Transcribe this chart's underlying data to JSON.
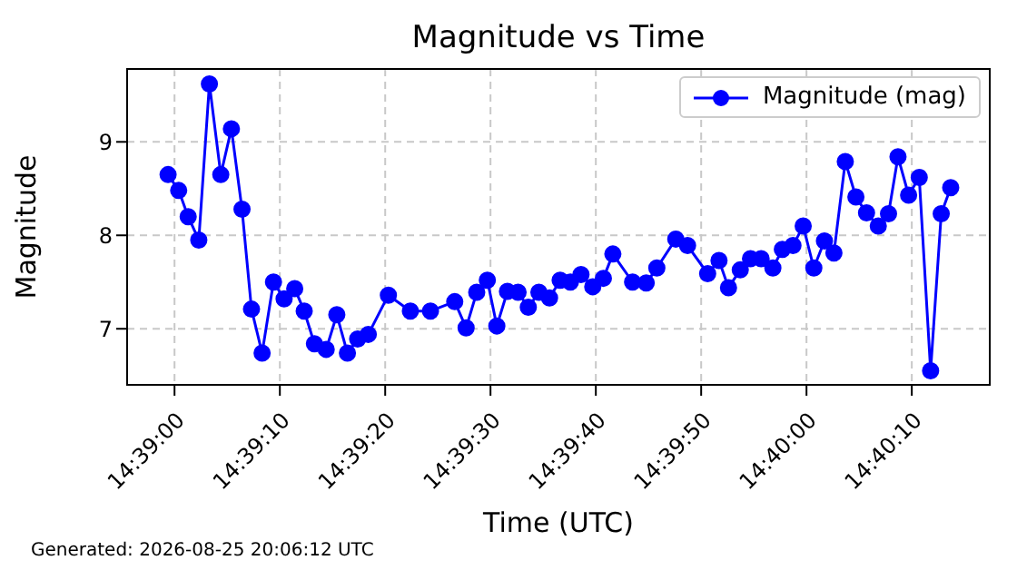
{
  "chart_data": {
    "type": "line",
    "title": "Magnitude vs Time",
    "xlabel": "Time (UTC)",
    "ylabel": "Magnitude",
    "annotations": [
      "Generated: 2026-08-25 20:06:12 UTC"
    ],
    "x": [
      14.64983,
      14.65011,
      14.65036,
      14.65064,
      14.65092,
      14.65122,
      14.6515,
      14.65178,
      14.65203,
      14.65231,
      14.65261,
      14.65289,
      14.65317,
      14.65342,
      14.65369,
      14.654,
      14.65428,
      14.65456,
      14.65483,
      14.65511,
      14.65564,
      14.65622,
      14.65675,
      14.65739,
      14.65769,
      14.65797,
      14.65825,
      14.6585,
      14.65878,
      14.65906,
      14.65933,
      14.65961,
      14.65989,
      14.66017,
      14.66044,
      14.66072,
      14.66103,
      14.66131,
      14.66156,
      14.66208,
      14.66244,
      14.66272,
      14.66322,
      14.66353,
      14.66406,
      14.66436,
      14.66461,
      14.66492,
      14.66519,
      14.66547,
      14.66578,
      14.66603,
      14.66631,
      14.66658,
      14.66686,
      14.66714,
      14.66739,
      14.66769,
      14.66797,
      14.66825,
      14.66856,
      14.66883,
      14.66908,
      14.66936,
      14.66964,
      14.66994,
      14.67022,
      14.67047
    ],
    "series": [
      {
        "name": "Magnitude (mag)",
        "color": "#0000ff",
        "values": [
          8.65,
          8.48,
          8.2,
          7.95,
          9.62,
          8.65,
          9.14,
          8.28,
          7.21,
          6.74,
          7.5,
          7.32,
          7.43,
          7.19,
          6.84,
          6.78,
          7.15,
          6.74,
          6.89,
          6.94,
          7.36,
          7.19,
          7.19,
          7.29,
          7.01,
          7.39,
          7.52,
          7.03,
          7.4,
          7.39,
          7.23,
          7.39,
          7.33,
          7.52,
          7.5,
          7.58,
          7.45,
          7.54,
          7.8,
          7.5,
          7.49,
          7.65,
          7.96,
          7.89,
          7.59,
          7.73,
          7.44,
          7.63,
          7.75,
          7.75,
          7.65,
          7.85,
          7.89,
          8.1,
          7.65,
          7.94,
          7.81,
          8.79,
          8.41,
          8.24,
          8.1,
          8.23,
          8.84,
          8.43,
          8.62,
          6.55,
          8.23,
          8.51
        ]
      }
    ],
    "xlim": [
      14.64875,
      14.6715
    ],
    "xticks": [
      {
        "value": 14.65,
        "label": "14:39:00"
      },
      {
        "value": 14.652778,
        "label": "14:39:10"
      },
      {
        "value": 14.655556,
        "label": "14:39:20"
      },
      {
        "value": 14.658333,
        "label": "14:39:30"
      },
      {
        "value": 14.661111,
        "label": "14:39:40"
      },
      {
        "value": 14.663889,
        "label": "14:39:50"
      },
      {
        "value": 14.666667,
        "label": "14:40:00"
      },
      {
        "value": 14.669444,
        "label": "14:40:10"
      }
    ],
    "ylim": [
      6.4,
      9.78
    ],
    "yticks": [
      7,
      8,
      9
    ],
    "grid": true,
    "legend": "top right",
    "marker": "circle",
    "line_style": "solid"
  }
}
